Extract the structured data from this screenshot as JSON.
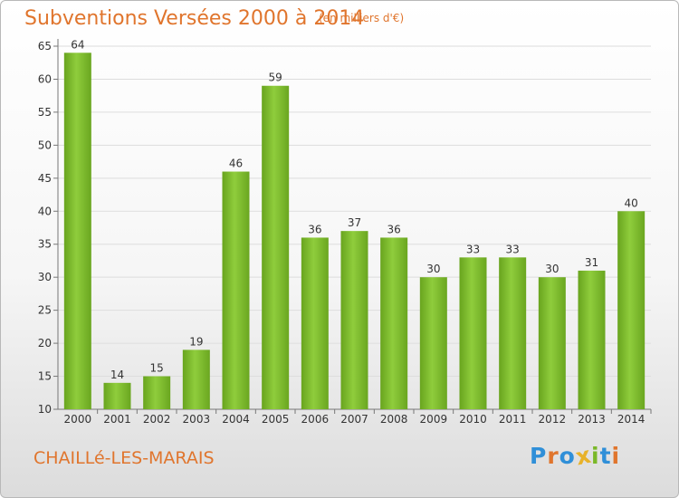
{
  "chart_data": {
    "type": "bar",
    "title": "Subventions Versées 2000 à 2014",
    "subtitle": "(en milliers d'€)",
    "categories": [
      "2000",
      "2001",
      "2002",
      "2003",
      "2004",
      "2005",
      "2006",
      "2007",
      "2008",
      "2009",
      "2010",
      "2011",
      "2012",
      "2013",
      "2014"
    ],
    "values": [
      64,
      14,
      15,
      19,
      46,
      59,
      36,
      37,
      36,
      30,
      33,
      33,
      30,
      31,
      40
    ],
    "ylim": [
      10,
      65
    ],
    "yticks": [
      10,
      15,
      20,
      25,
      30,
      35,
      40,
      45,
      50,
      55,
      60,
      65
    ],
    "grid": true,
    "bar_color": "#7ab828"
  },
  "footer": {
    "commune": "CHAILLé-LES-MARAIS",
    "logo": [
      "P",
      "r",
      "o",
      "x",
      "i",
      "t",
      "i"
    ],
    "logo_colors": [
      "#2f8fd8",
      "#e0752d",
      "#2f8fd8",
      "#e8b22a",
      "#7ab828",
      "#2f8fd8",
      "#e0752d"
    ]
  }
}
